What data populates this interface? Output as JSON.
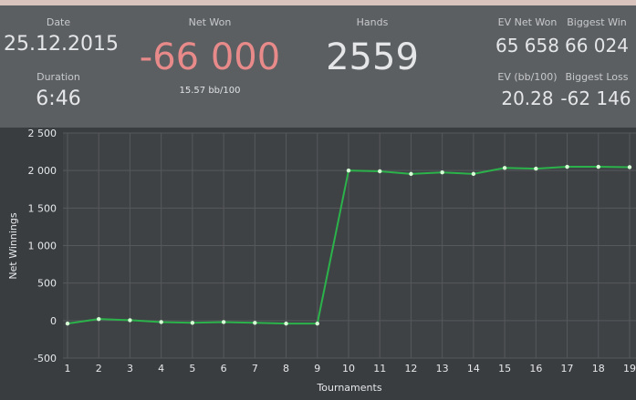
{
  "stats": {
    "date_label": "Date",
    "date_value": "25.12.2015",
    "duration_label": "Duration",
    "duration_value": "6:46",
    "net_won_label": "Net Won",
    "net_won_value": "-66 000",
    "net_won_sub": "15.57 bb/100",
    "hands_label": "Hands",
    "hands_value": "2559",
    "ev_net_won_label": "EV Net Won",
    "ev_net_won_value": "65 658",
    "biggest_win_label": "Biggest Win",
    "biggest_win_value": "66 024",
    "ev_bb_label": "EV (bb/100)",
    "ev_bb_value": "20.28",
    "biggest_loss_label": "Biggest Loss",
    "biggest_loss_value": "-62 146"
  },
  "colors": {
    "negative": "#e88a8a",
    "line": "#2bb24a",
    "point": "#d6ffd6"
  },
  "chart_data": {
    "type": "line",
    "x": [
      1,
      2,
      3,
      4,
      5,
      6,
      7,
      8,
      9,
      10,
      11,
      12,
      13,
      14,
      15,
      16,
      17,
      18,
      19
    ],
    "series": [
      {
        "values": [
          -40,
          20,
          5,
          -20,
          -30,
          -20,
          -30,
          -40,
          -40,
          2000,
          1990,
          1955,
          1975,
          1955,
          2035,
          2025,
          2050,
          2050,
          2045
        ]
      }
    ],
    "xlabel": "Tournaments",
    "ylabel": "Net Winnings",
    "ylim": [
      -500,
      2500
    ],
    "yticks": [
      -500,
      0,
      500,
      1000,
      1500,
      2000,
      2500
    ],
    "ytick_labels": [
      "-500",
      "0",
      "500",
      "1 000",
      "1 500",
      "2 000",
      "2 500"
    ],
    "xticks": [
      "1",
      "2",
      "3",
      "4",
      "5",
      "6",
      "7",
      "8",
      "9",
      "10",
      "11",
      "12",
      "13",
      "14",
      "15",
      "16",
      "17",
      "18",
      "19"
    ],
    "grid": true
  }
}
